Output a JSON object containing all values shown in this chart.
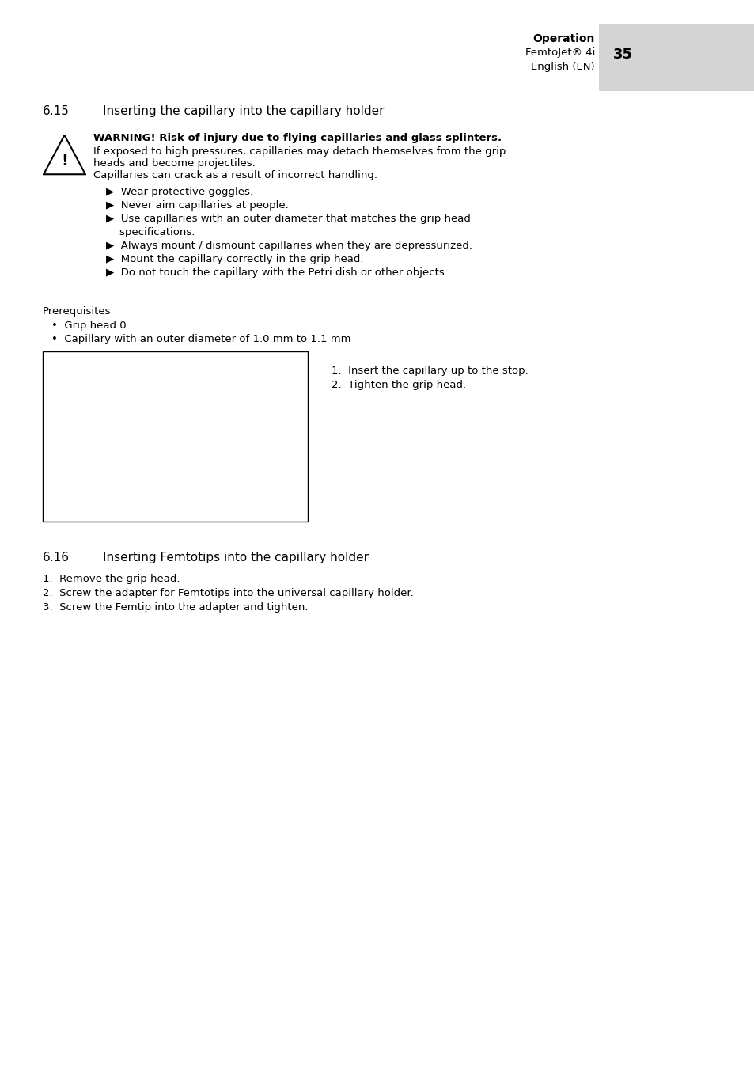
{
  "page_bg": "#ffffff",
  "header_gray": "#d8d8d8",
  "header_text_bold": "Operation",
  "header_text_line2": "FemtoJet® 4i",
  "header_page_num": "35",
  "header_text_line3": "English (EN)",
  "section_615_num": "6.15",
  "section_615_title": "Inserting the capillary into the capillary holder",
  "warning_title": "WARNING! Risk of injury due to flying capillaries and glass splinters.",
  "warning_body1": "If exposed to high pressures, capillaries may detach themselves from the grip",
  "warning_body2": "heads and become projectiles.",
  "warning_body3": "Capillaries can crack as a result of incorrect handling.",
  "bullet1": "▶  Wear protective goggles.",
  "bullet2": "▶  Never aim capillaries at people.",
  "bullet3a": "▶  Use capillaries with an outer diameter that matches the grip head",
  "bullet3b": "    specifications.",
  "bullet4": "▶  Always mount / dismount capillaries when they are depressurized.",
  "bullet5": "▶  Mount the capillary correctly in the grip head.",
  "bullet6": "▶  Do not touch the capillary with the Petri dish or other objects.",
  "prereq_label": "Prerequisites",
  "prereq1": "Grip head 0",
  "prereq2": "Capillary with an outer diameter of 1.0 mm to 1.1 mm",
  "step1": "1.  Insert the capillary up to the stop.",
  "step2": "2.  Tighten the grip head.",
  "section_616_num": "6.16",
  "section_616_title": "Inserting Femtotips into the capillary holder",
  "step616_1": "1.  Remove the grip head.",
  "step616_2": "2.  Screw the adapter for Femtotips into the universal capillary holder.",
  "step616_3": "3.  Screw the Femtip into the adapter and tighten.",
  "warning_color": "#e8003d",
  "pink_arrow_color": "#e8003d",
  "text_color": "#000000",
  "header_gray_color": "#d4d4d4"
}
